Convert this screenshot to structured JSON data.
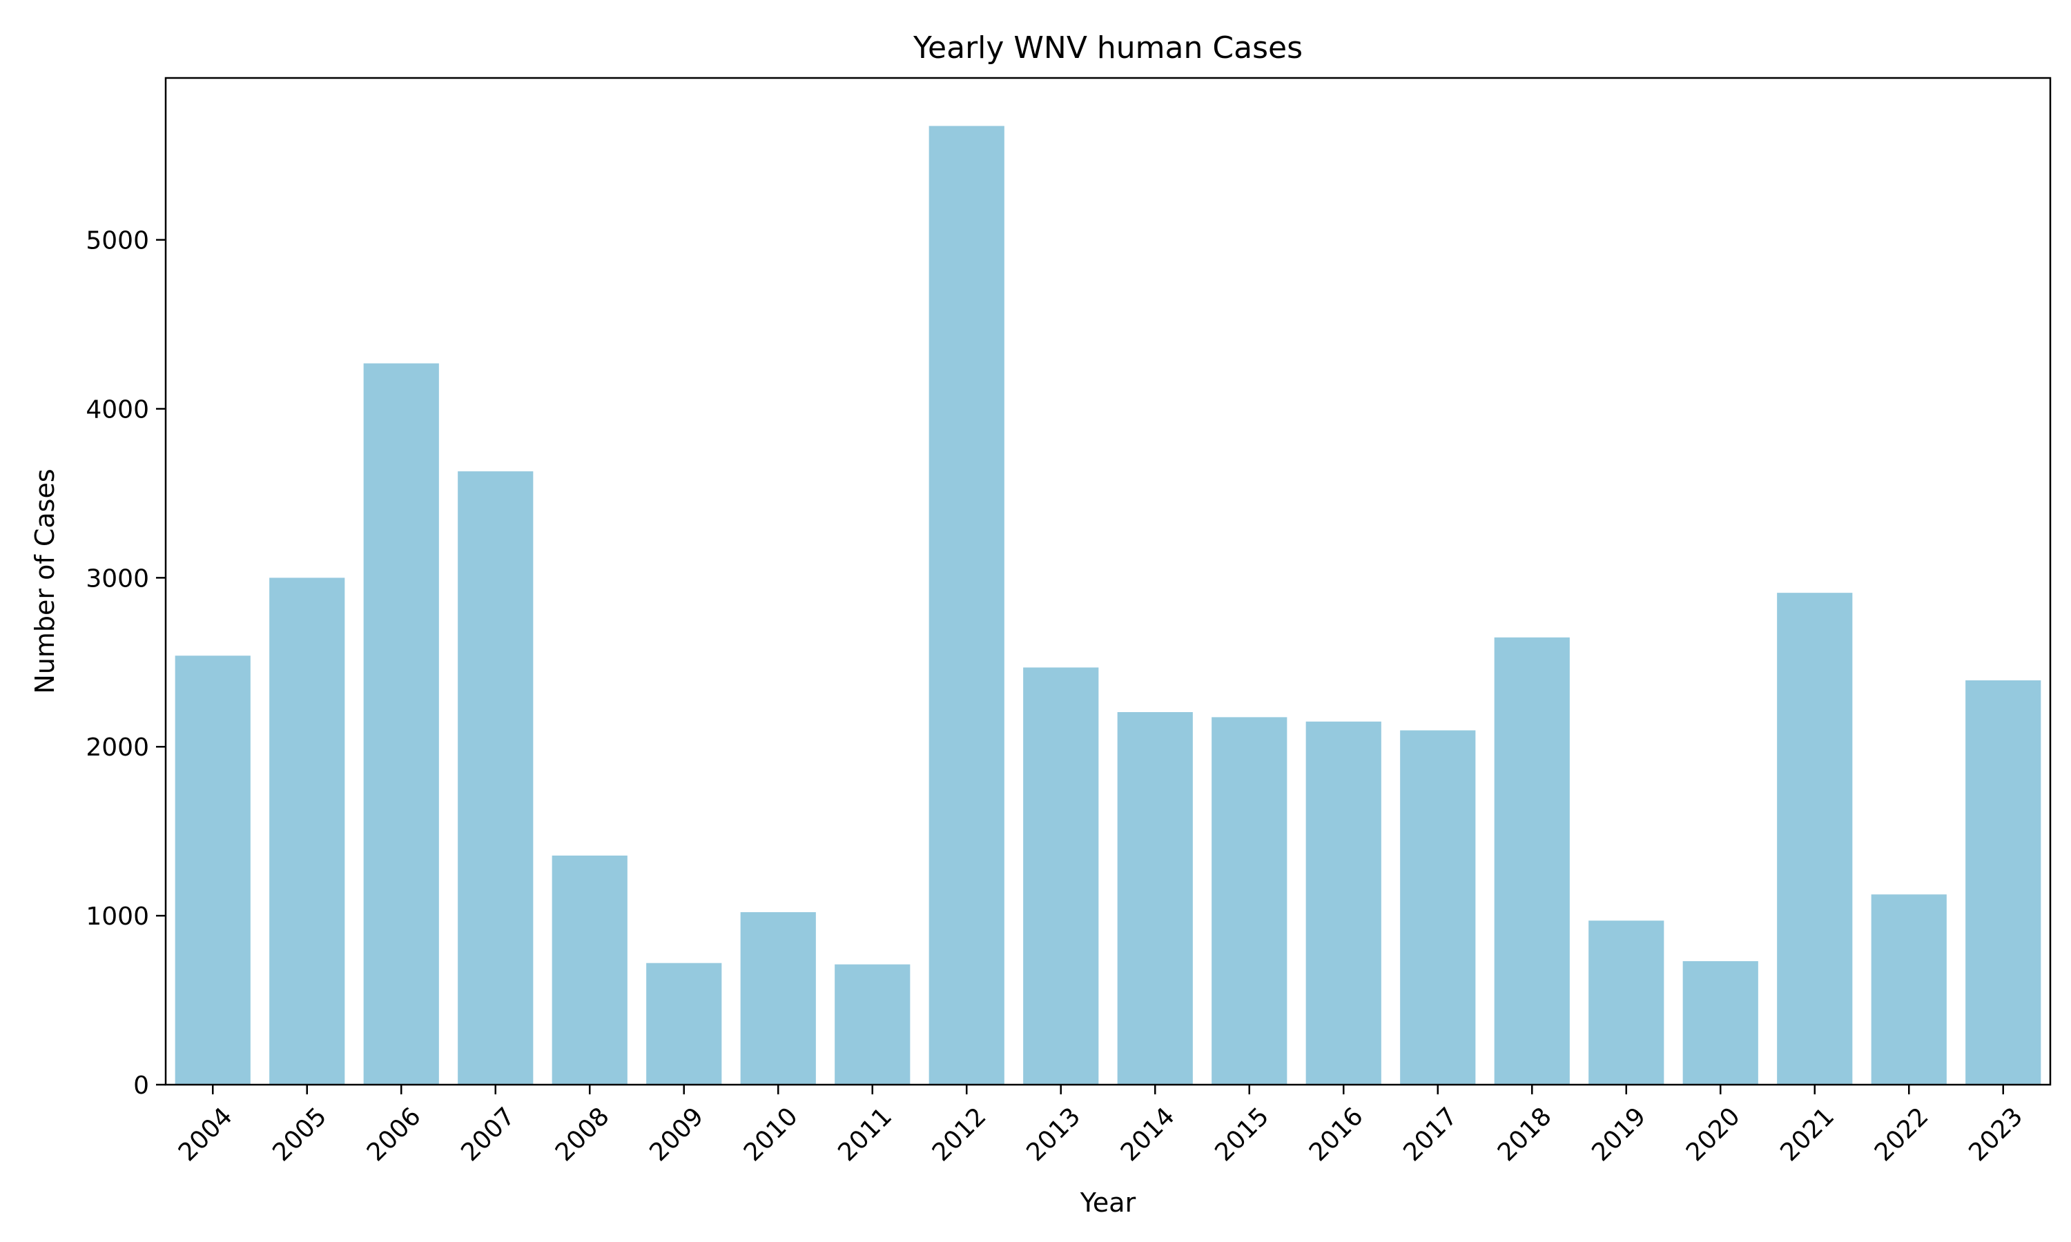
{
  "chart_data": {
    "type": "bar",
    "title": "Yearly WNV human Cases",
    "xlabel": "Year",
    "ylabel": "Number of Cases",
    "categories": [
      "2004",
      "2005",
      "2006",
      "2007",
      "2008",
      "2009",
      "2010",
      "2011",
      "2012",
      "2013",
      "2014",
      "2015",
      "2016",
      "2017",
      "2018",
      "2019",
      "2020",
      "2021",
      "2022",
      "2023"
    ],
    "values": [
      2539,
      3000,
      4269,
      3630,
      1356,
      720,
      1021,
      712,
      5674,
      2469,
      2205,
      2175,
      2149,
      2097,
      2647,
      971,
      731,
      2911,
      1126,
      2393
    ],
    "yticks": [
      0,
      1000,
      2000,
      3000,
      4000,
      5000
    ],
    "ylim": [
      0,
      5958
    ],
    "bar_color": "#95c9de",
    "grid": false,
    "xtick_rotation": 45
  }
}
